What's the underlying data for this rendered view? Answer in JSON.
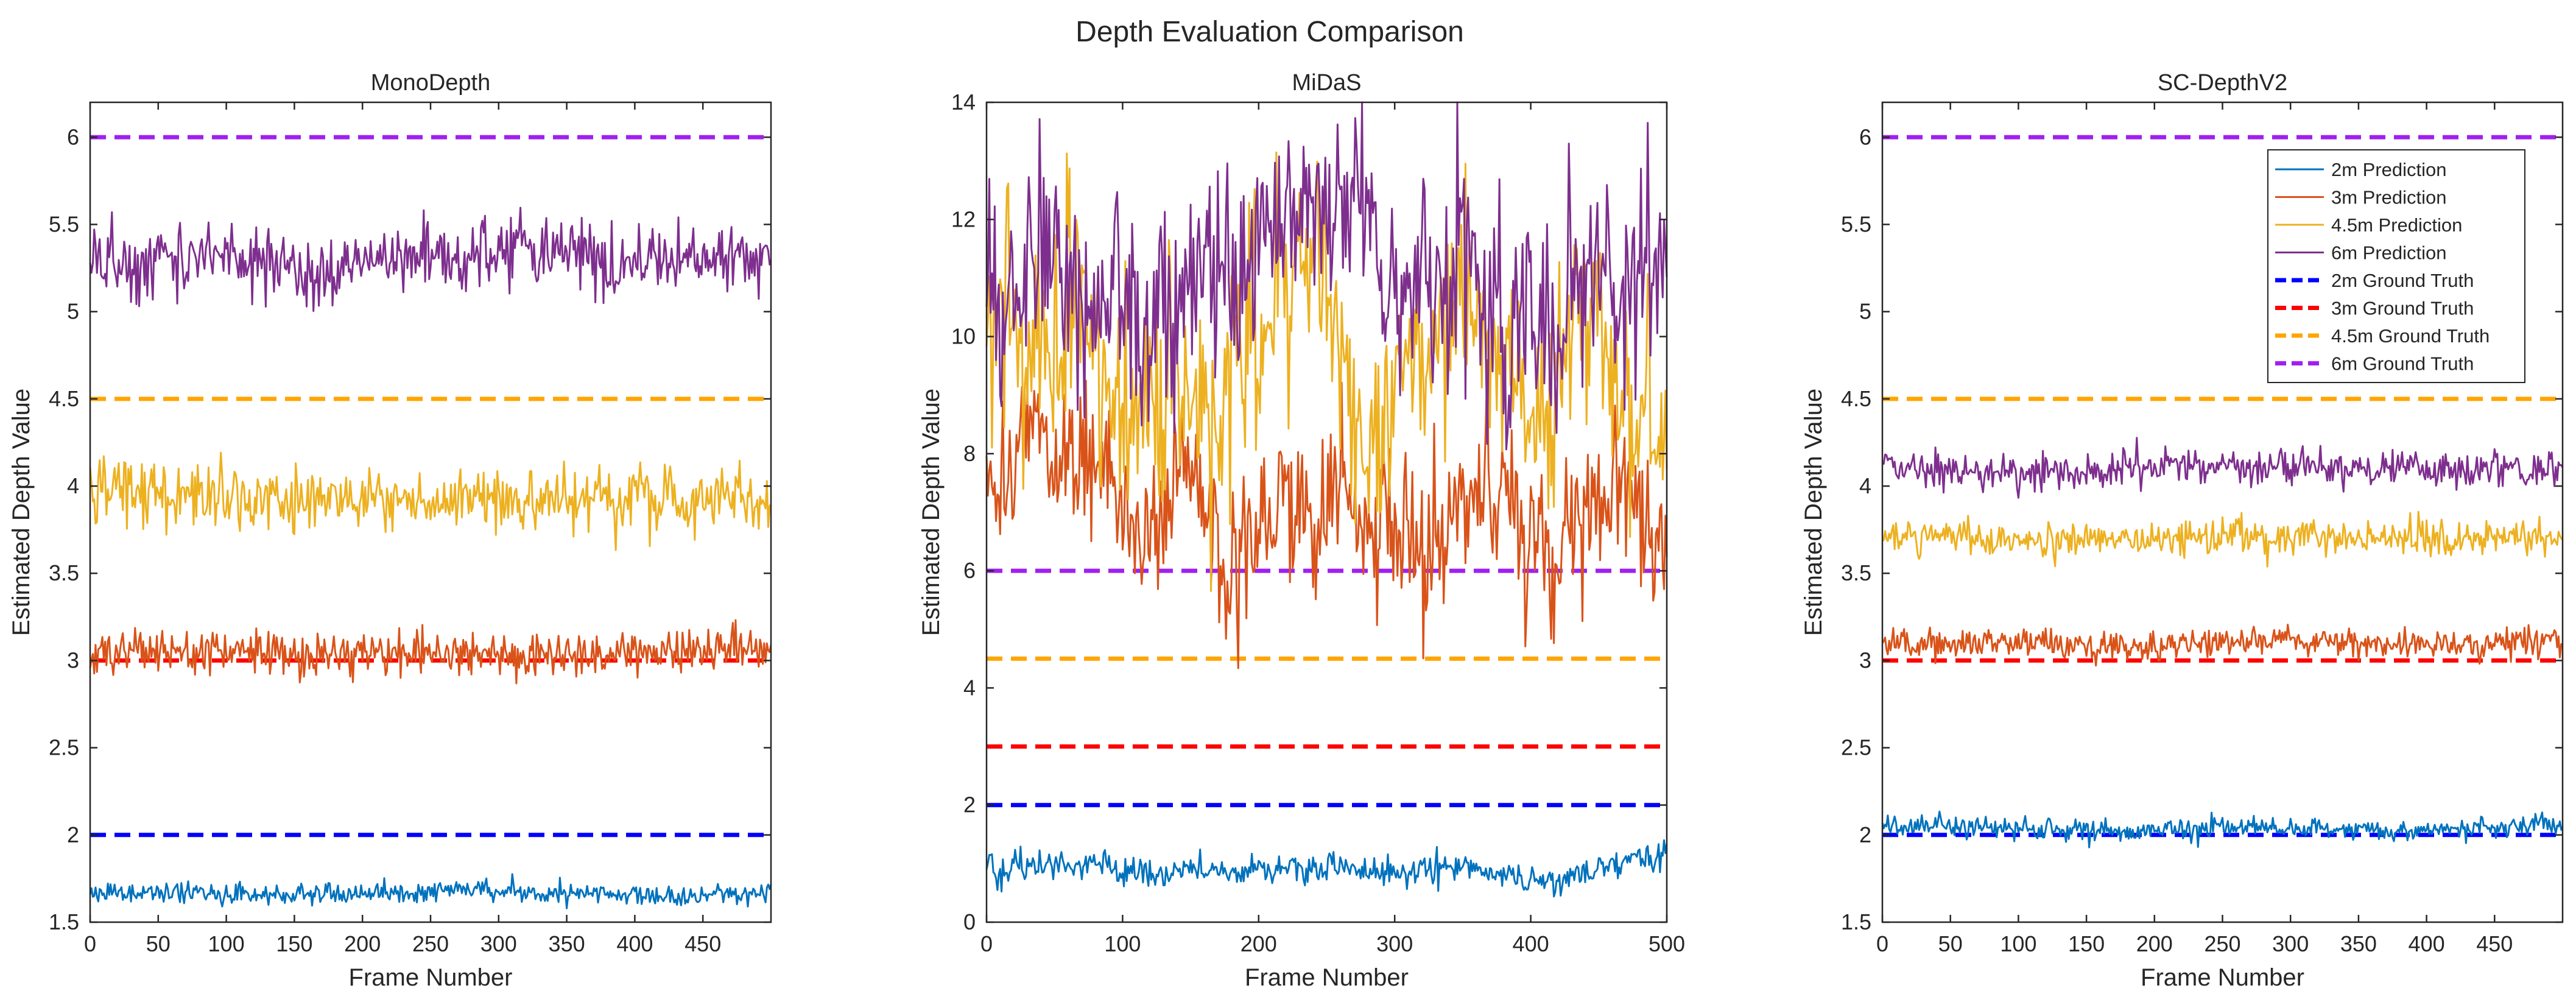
{
  "figure": {
    "title": "Depth Evaluation Comparison"
  },
  "chart_data": [
    {
      "type": "line",
      "title": "MonoDepth",
      "xlabel": "Frame Number",
      "ylabel": "Estimated Depth Value",
      "xlim": [
        0,
        500
      ],
      "ylim": [
        1.5,
        6.2
      ],
      "xticks": [
        0,
        50,
        100,
        150,
        200,
        250,
        300,
        350,
        400,
        450
      ],
      "yticks": [
        1.5,
        2,
        2.5,
        3,
        3.5,
        4,
        4.5,
        5,
        5.5,
        6
      ],
      "ytick_labels": [
        "1.5",
        "2",
        "2.5",
        "3",
        "3.5",
        "4",
        "4.5",
        "5",
        "5.5",
        "6"
      ],
      "series": [
        {
          "name": "2m Prediction",
          "mean": 1.67,
          "noise": 0.03,
          "wave": 0.01,
          "seed": 11
        },
        {
          "name": "3m Prediction",
          "mean": 3.04,
          "noise": 0.06,
          "wave": 0.01,
          "seed": 12
        },
        {
          "name": "4.5m Prediction",
          "mean": 3.93,
          "noise": 0.09,
          "wave": 0.02,
          "seed": 13
        },
        {
          "name": "6m Prediction",
          "mean": 5.31,
          "noise": 0.1,
          "wave": 0.03,
          "seed": 14
        }
      ],
      "ground_truth": [
        {
          "name": "2m Ground Truth",
          "value": 2
        },
        {
          "name": "3m Ground Truth",
          "value": 3
        },
        {
          "name": "4.5m Ground Truth",
          "value": 4.5
        },
        {
          "name": "6m Ground Truth",
          "value": 6
        }
      ]
    },
    {
      "type": "line",
      "title": "MiDaS",
      "xlabel": "Frame Number",
      "ylabel": "Estimated Depth Value",
      "xlim": [
        0,
        500
      ],
      "ylim": [
        0,
        14
      ],
      "xticks": [
        0,
        100,
        200,
        300,
        400,
        500
      ],
      "yticks": [
        0,
        2,
        4,
        6,
        8,
        10,
        12,
        14
      ],
      "ytick_labels": [
        "0",
        "2",
        "4",
        "6",
        "8",
        "10",
        "12",
        "14"
      ],
      "series": [
        {
          "name": "2m Prediction",
          "mean": 0.95,
          "noise": 0.12,
          "wave": 0.08,
          "seed": 21
        },
        {
          "name": "3m Prediction",
          "mean": 6.8,
          "noise": 0.6,
          "wave": 0.5,
          "seed": 22
        },
        {
          "name": "4.5m Prediction",
          "mean": 9.9,
          "noise": 0.9,
          "wave": 0.7,
          "seed": 23
        },
        {
          "name": "6m Prediction",
          "mean": 10.8,
          "noise": 0.9,
          "wave": 0.7,
          "seed": 24
        }
      ],
      "ground_truth": [
        {
          "name": "2m Ground Truth",
          "value": 2
        },
        {
          "name": "3m Ground Truth",
          "value": 3
        },
        {
          "name": "4.5m Ground Truth",
          "value": 4.5
        },
        {
          "name": "6m Ground Truth",
          "value": 6
        }
      ]
    },
    {
      "type": "line",
      "title": "SC-DepthV2",
      "xlabel": "Frame Number",
      "ylabel": "Estimated Depth Value",
      "xlim": [
        0,
        500
      ],
      "ylim": [
        1.5,
        6.2
      ],
      "xticks": [
        0,
        50,
        100,
        150,
        200,
        250,
        300,
        350,
        400,
        450
      ],
      "yticks": [
        1.5,
        2,
        2.5,
        3,
        3.5,
        4,
        4.5,
        5,
        5.5,
        6
      ],
      "ytick_labels": [
        "1.5",
        "2",
        "2.5",
        "3",
        "3.5",
        "4",
        "4.5",
        "5",
        "5.5",
        "6"
      ],
      "legend": "top-right",
      "series": [
        {
          "name": "2m Prediction",
          "mean": 2.04,
          "noise": 0.03,
          "wave": 0.01,
          "seed": 31
        },
        {
          "name": "3m Prediction",
          "mean": 3.1,
          "noise": 0.04,
          "wave": 0.01,
          "seed": 32
        },
        {
          "name": "4.5m Prediction",
          "mean": 3.7,
          "noise": 0.05,
          "wave": 0.01,
          "seed": 33
        },
        {
          "name": "6m Prediction",
          "mean": 4.1,
          "noise": 0.05,
          "wave": 0.01,
          "seed": 34
        }
      ],
      "ground_truth": [
        {
          "name": "2m Ground Truth",
          "value": 2
        },
        {
          "name": "3m Ground Truth",
          "value": 3
        },
        {
          "name": "4.5m Ground Truth",
          "value": 4.5
        },
        {
          "name": "6m Ground Truth",
          "value": 6
        }
      ]
    }
  ],
  "colors": {
    "pred_2m": "#0072BD",
    "pred_3m": "#D95319",
    "pred_45m": "#EDB120",
    "pred_6m": "#7E2F8E",
    "gt_2m": "#0000FF",
    "gt_3m": "#FF0000",
    "gt_45m": "#FFA500",
    "gt_6m": "#A020F0"
  }
}
